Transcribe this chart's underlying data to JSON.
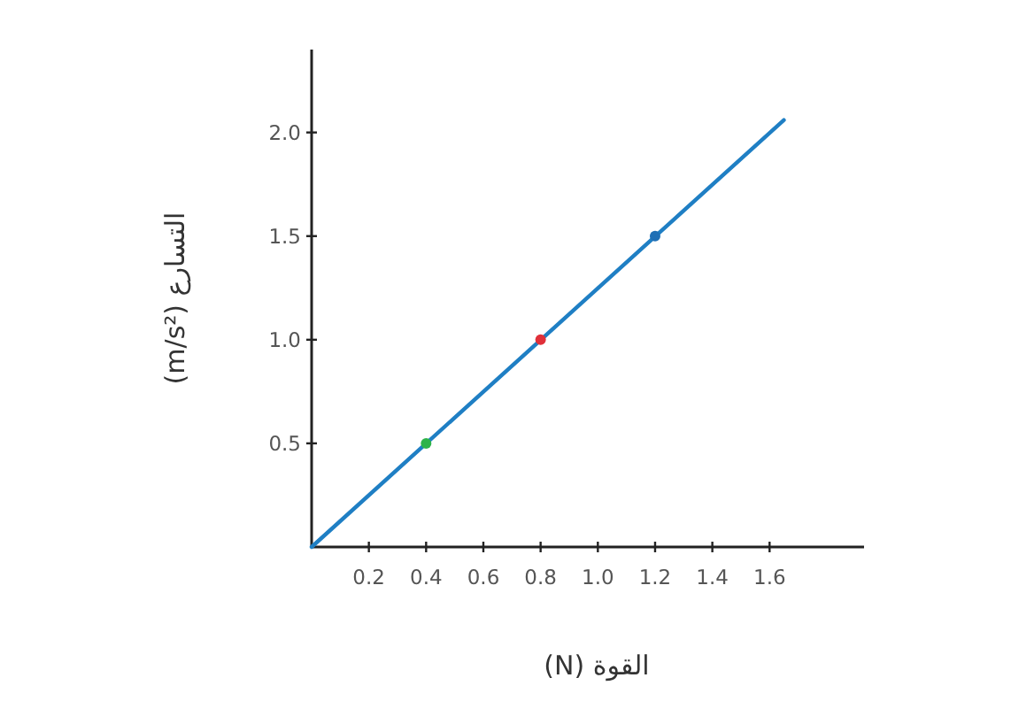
{
  "chart_data": {
    "type": "line",
    "xlabel": "القوة (N)",
    "ylabel": "التسارع (m/s²)",
    "xlim": [
      0,
      1.93
    ],
    "ylim": [
      0,
      2.4
    ],
    "xticks": [
      0.2,
      0.4,
      0.6,
      0.8,
      {
        "value": 1,
        "label": "1.0"
      },
      1.2,
      1.4,
      1.6
    ],
    "yticks": [
      0.5,
      {
        "value": 1,
        "label": "1.0"
      },
      1.5,
      {
        "value": 2,
        "label": "2.0"
      }
    ],
    "grid": false,
    "series": [
      {
        "color": "#1f7fc4",
        "x": [
          0,
          1.65
        ],
        "values": [
          0,
          2.06
        ],
        "marker": "none"
      },
      {
        "type": "scatter",
        "x": [
          0.4,
          0.8,
          1.2
        ],
        "values": [
          0.5,
          1.0,
          1.5
        ],
        "colors": [
          "#2db34a",
          "#e0303a",
          "#1f6fb5"
        ],
        "marker": "circle"
      }
    ]
  }
}
